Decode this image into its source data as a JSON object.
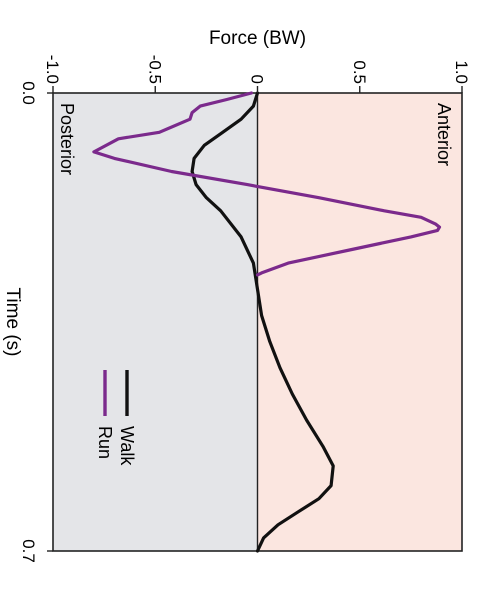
{
  "chart_data": {
    "type": "line",
    "orientation": "rotated-90-clockwise",
    "xlabel": "Time (s)",
    "ylabel": "Force (BW)",
    "xlim": [
      0.0,
      0.7
    ],
    "ylim": [
      -1.0,
      1.0
    ],
    "x_ticks": [
      "0.0",
      "0.7"
    ],
    "y_ticks": [
      "-1.0",
      "-0.5",
      "0",
      "0.5",
      "1.0"
    ],
    "regions": [
      {
        "name": "Posterior",
        "range": [
          -1.0,
          0
        ],
        "color": "#e4e5e8"
      },
      {
        "name": "Anterior",
        "range": [
          0,
          1.0
        ],
        "color": "#fbe6e0"
      }
    ],
    "legend": {
      "placement": "center"
    },
    "series": [
      {
        "name": "Walk",
        "color": "#111111",
        "x": [
          0.0,
          0.02,
          0.04,
          0.06,
          0.08,
          0.1,
          0.12,
          0.14,
          0.16,
          0.18,
          0.22,
          0.26,
          0.3,
          0.34,
          0.38,
          0.42,
          0.46,
          0.5,
          0.54,
          0.57,
          0.6,
          0.62,
          0.64,
          0.66,
          0.68,
          0.7
        ],
        "values": [
          0.0,
          -0.02,
          -0.08,
          -0.17,
          -0.26,
          -0.31,
          -0.32,
          -0.3,
          -0.25,
          -0.18,
          -0.08,
          -0.02,
          0.0,
          0.02,
          0.06,
          0.11,
          0.17,
          0.24,
          0.32,
          0.37,
          0.36,
          0.3,
          0.2,
          0.1,
          0.03,
          0.0
        ]
      },
      {
        "name": "Run",
        "color": "#7b2a8c",
        "x": [
          0.0,
          0.01,
          0.02,
          0.03,
          0.04,
          0.06,
          0.07,
          0.09,
          0.1,
          0.12,
          0.14,
          0.16,
          0.18,
          0.19,
          0.2,
          0.205,
          0.21,
          0.22,
          0.24,
          0.26,
          0.275,
          0.278
        ],
        "values": [
          -0.03,
          -0.15,
          -0.28,
          -0.32,
          -0.33,
          -0.48,
          -0.68,
          -0.8,
          -0.7,
          -0.42,
          -0.05,
          0.3,
          0.62,
          0.8,
          0.87,
          0.89,
          0.88,
          0.75,
          0.45,
          0.15,
          0.02,
          0.0
        ]
      }
    ]
  }
}
